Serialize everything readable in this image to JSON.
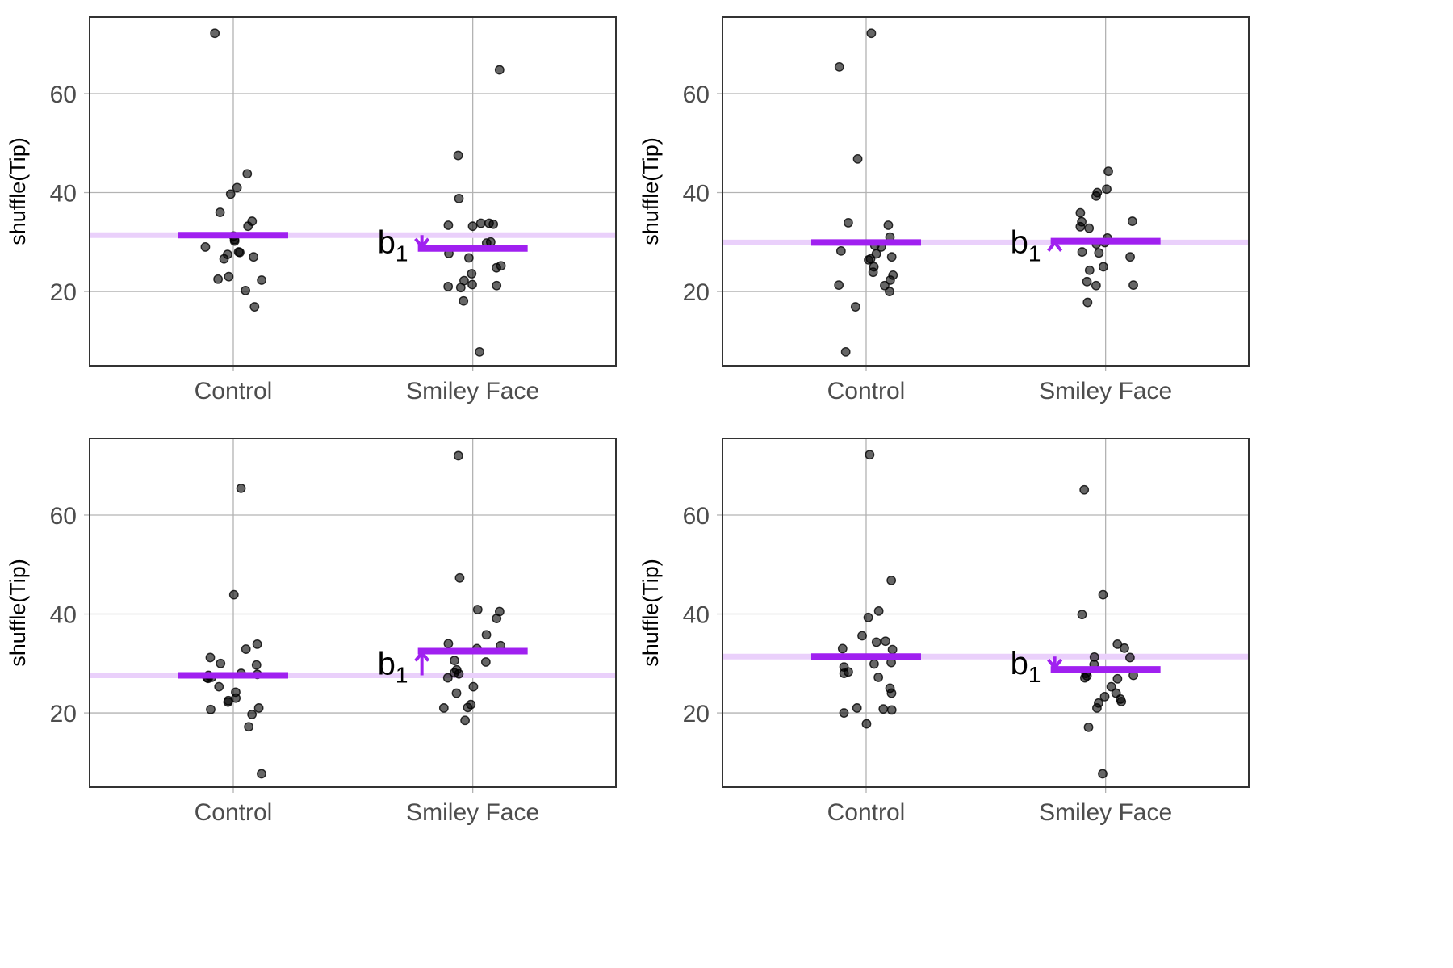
{
  "colors": {
    "point_fill": "#000000",
    "point_opacity": 0.6,
    "group_mean_line": "#a020f0",
    "grand_mean_line": "#ead0fb",
    "grid": "#b3b3b3",
    "panel_border": "#333333",
    "tick_text": "#4d4d4d",
    "annotation_text": "#000000"
  },
  "chart_data": [
    {
      "type": "scatter",
      "subtype": "jitter-with-group-means",
      "panel": "top-left",
      "title": "",
      "xlabel": "",
      "ylabel": "shuffle(Tip)",
      "categories": [
        "Control",
        "Smiley Face"
      ],
      "yticks": [
        20,
        40,
        60
      ],
      "ylim": [
        5,
        75.5
      ],
      "grid": true,
      "annotation": {
        "label": "b",
        "subscript": "1",
        "direction": "down"
      },
      "grand_mean": 31.4,
      "group_means": {
        "Control": 31.4,
        "Smiley Face": 28.7
      },
      "points": {
        "Control": [
          72.2,
          43.8,
          41.0,
          39.7,
          36.0,
          34.2,
          33.2,
          31.2,
          30.2,
          30.5,
          29.0,
          28.0,
          27.9,
          27.5,
          27.0,
          26.6,
          23.0,
          22.5,
          22.3,
          20.2,
          16.9
        ],
        "Smiley Face": [
          64.8,
          47.5,
          38.8,
          33.8,
          33.6,
          33.8,
          33.4,
          33.2,
          30.0,
          29.8,
          27.7,
          26.8,
          25.2,
          24.8,
          23.6,
          22.2,
          21.4,
          21.0,
          21.2,
          20.8,
          18.1,
          7.8
        ]
      }
    },
    {
      "type": "scatter",
      "subtype": "jitter-with-group-means",
      "panel": "top-right",
      "title": "",
      "xlabel": "",
      "ylabel": "shuffle(Tip)",
      "categories": [
        "Control",
        "Smiley Face"
      ],
      "yticks": [
        20,
        40,
        60
      ],
      "ylim": [
        5,
        75.5
      ],
      "grid": true,
      "annotation": {
        "label": "b",
        "subscript": "1",
        "direction": "up"
      },
      "grand_mean": 29.9,
      "group_means": {
        "Control": 29.9,
        "Smiley Face": 30.2
      },
      "points": {
        "Control": [
          72.2,
          65.4,
          46.8,
          33.4,
          33.9,
          31.0,
          29.3,
          29.0,
          28.2,
          27.6,
          27.0,
          26.6,
          26.4,
          25.0,
          23.9,
          23.3,
          22.3,
          21.3,
          21.2,
          20.0,
          16.9,
          7.8
        ],
        "Smiley Face": [
          44.3,
          40.7,
          40.0,
          39.3,
          35.9,
          34.1,
          34.2,
          33.1,
          32.8,
          30.8,
          29.9,
          29.6,
          28.0,
          27.8,
          27.0,
          25.0,
          24.3,
          22.0,
          21.3,
          21.2,
          17.8
        ]
      }
    },
    {
      "type": "scatter",
      "subtype": "jitter-with-group-means",
      "panel": "bottom-left",
      "title": "",
      "xlabel": "",
      "ylabel": "shuffle(Tip)",
      "categories": [
        "Control",
        "Smiley Face"
      ],
      "yticks": [
        20,
        40,
        60
      ],
      "ylim": [
        5,
        75.5
      ],
      "grid": true,
      "annotation": {
        "label": "b",
        "subscript": "1",
        "direction": "up"
      },
      "grand_mean": 27.6,
      "group_means": {
        "Control": 27.6,
        "Smiley Face": 32.5
      },
      "points": {
        "Control": [
          65.4,
          43.9,
          33.9,
          32.9,
          31.2,
          30.0,
          29.7,
          28.0,
          27.8,
          27.6,
          27.2,
          27.0,
          27.1,
          25.3,
          24.2,
          23.0,
          22.5,
          22.2,
          21.0,
          20.7,
          19.7,
          17.2,
          7.7
        ],
        "Smiley Face": [
          72.0,
          47.3,
          40.9,
          40.5,
          39.1,
          35.8,
          34.0,
          33.6,
          33.0,
          30.6,
          30.3,
          28.7,
          28.1,
          27.9,
          27.1,
          25.3,
          24.0,
          21.7,
          21.1,
          21.0,
          18.5
        ]
      }
    },
    {
      "type": "scatter",
      "subtype": "jitter-with-group-means",
      "panel": "bottom-right",
      "title": "",
      "xlabel": "",
      "ylabel": "shuffle(Tip)",
      "categories": [
        "Control",
        "Smiley Face"
      ],
      "yticks": [
        20,
        40,
        60
      ],
      "ylim": [
        5,
        75.5
      ],
      "grid": true,
      "annotation": {
        "label": "b",
        "subscript": "1",
        "direction": "down"
      },
      "grand_mean": 31.4,
      "group_means": {
        "Control": 31.4,
        "Smiley Face": 28.8
      },
      "points": {
        "Control": [
          72.2,
          46.8,
          40.6,
          39.3,
          35.6,
          34.5,
          34.3,
          33.0,
          32.8,
          30.2,
          29.9,
          29.3,
          28.3,
          28.0,
          27.2,
          25.0,
          24.0,
          21.0,
          20.8,
          20.6,
          20.0,
          17.8
        ],
        "Smiley Face": [
          65.1,
          43.9,
          39.9,
          33.9,
          33.1,
          31.3,
          31.2,
          29.8,
          28.0,
          27.6,
          27.5,
          27.1,
          26.9,
          25.3,
          24.0,
          23.3,
          22.8,
          22.3,
          22.0,
          21.0,
          17.1,
          7.7
        ]
      }
    }
  ]
}
